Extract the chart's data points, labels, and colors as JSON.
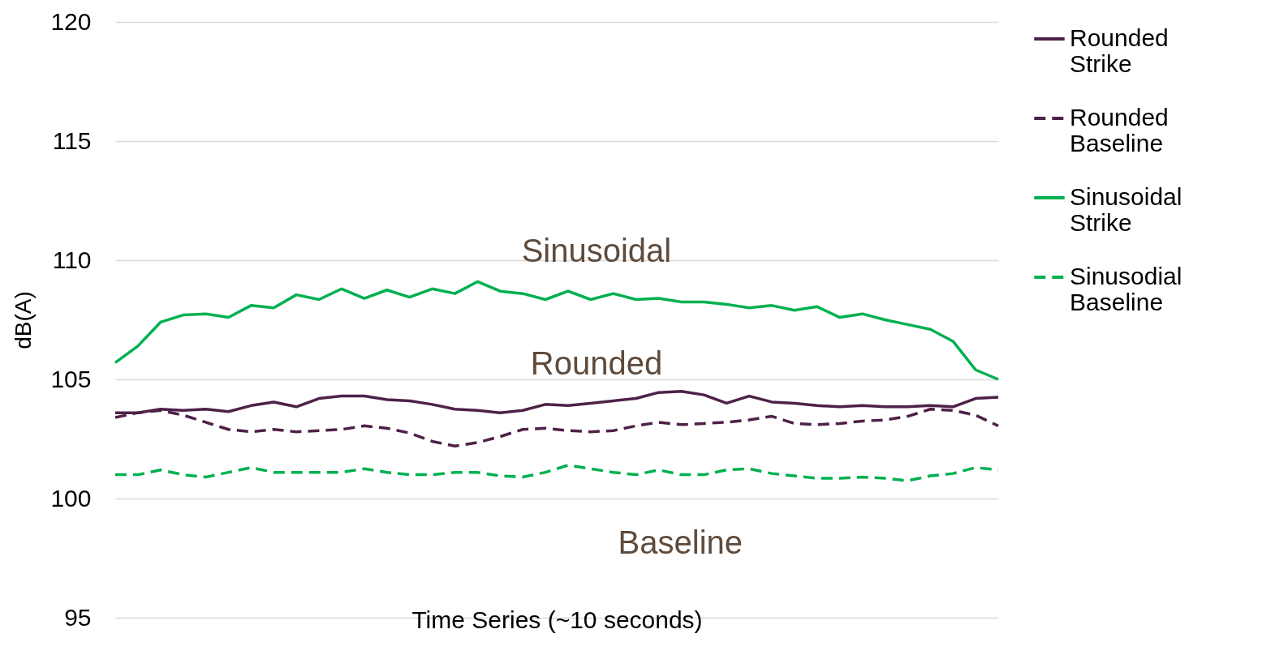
{
  "chart_data": {
    "type": "line",
    "xlabel": "Time Series (~10 seconds)",
    "ylabel": "dB(A)",
    "categories": [
      null,
      null,
      null,
      null,
      null,
      null,
      null,
      null,
      null,
      null,
      null,
      null,
      null,
      null,
      null,
      null,
      null,
      null,
      null,
      null,
      null,
      null,
      null,
      null,
      null,
      null,
      null,
      null,
      null,
      null,
      null,
      null,
      null,
      null,
      null,
      null,
      null,
      null,
      null,
      null
    ],
    "series": [
      {
        "name": "Rounded Strike",
        "color": "#4e2148",
        "line_style": "solid",
        "values": [
          103.6,
          103.6,
          103.75,
          103.7,
          103.75,
          103.65,
          103.9,
          104.05,
          103.85,
          104.2,
          104.3,
          104.3,
          104.15,
          104.1,
          103.95,
          103.75,
          103.7,
          103.6,
          103.7,
          103.95,
          103.9,
          104.0,
          104.1,
          104.2,
          104.45,
          104.5,
          104.35,
          104.0,
          104.3,
          104.05,
          104.0,
          103.9,
          103.85,
          103.9,
          103.85,
          103.85,
          103.9,
          103.85,
          104.2,
          104.25
        ]
      },
      {
        "name": "Rounded Baseline",
        "color": "#4e2148",
        "line_style": "dashed",
        "values": [
          103.4,
          103.6,
          103.7,
          103.5,
          103.2,
          102.9,
          102.8,
          102.9,
          102.8,
          102.85,
          102.9,
          103.05,
          102.95,
          102.75,
          102.4,
          102.2,
          102.35,
          102.6,
          102.9,
          102.95,
          102.85,
          102.8,
          102.85,
          103.05,
          103.2,
          103.1,
          103.15,
          103.2,
          103.3,
          103.45,
          103.15,
          103.1,
          103.15,
          103.25,
          103.3,
          103.45,
          103.75,
          103.7,
          103.5,
          103.05
        ]
      },
      {
        "name": "Sinusoidal Strike",
        "color": "#00b050",
        "line_style": "solid",
        "values": [
          105.7,
          106.4,
          107.4,
          107.7,
          107.75,
          107.6,
          108.1,
          108.0,
          108.55,
          108.35,
          108.8,
          108.4,
          108.75,
          108.45,
          108.8,
          108.6,
          109.1,
          108.7,
          108.6,
          108.35,
          108.7,
          108.35,
          108.6,
          108.35,
          108.4,
          108.25,
          108.25,
          108.15,
          108.0,
          108.1,
          107.9,
          108.05,
          107.6,
          107.75,
          107.5,
          107.3,
          107.1,
          106.6,
          105.4,
          105.0
        ]
      },
      {
        "name": "Sinusodial Baseline",
        "color": "#00b050",
        "line_style": "dashed",
        "values": [
          101.0,
          101.0,
          101.2,
          101.0,
          100.9,
          101.1,
          101.3,
          101.1,
          101.1,
          101.1,
          101.1,
          101.25,
          101.1,
          101.0,
          101.0,
          101.1,
          101.1,
          100.95,
          100.9,
          101.1,
          101.4,
          101.25,
          101.1,
          101.0,
          101.2,
          101.0,
          101.0,
          101.2,
          101.25,
          101.05,
          100.95,
          100.85,
          100.85,
          100.9,
          100.85,
          100.75,
          100.95,
          101.05,
          101.3,
          101.2
        ]
      }
    ],
    "ylim": [
      95,
      120
    ],
    "yticks": [
      95,
      100,
      105,
      110,
      115,
      120
    ],
    "grid": "y",
    "legend": "right",
    "marker": "none",
    "annotations": [
      "Sinusoidal",
      "Rounded",
      "Baseline"
    ]
  }
}
